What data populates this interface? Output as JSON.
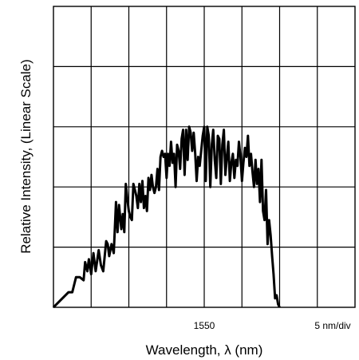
{
  "chart_data": {
    "type": "line",
    "title": "",
    "xlabel": "Wavelength, λ (nm)",
    "ylabel": "Relative Intensity, (Linear Scale)",
    "x_tick_label": "1550",
    "x_scale_label": "5 nm/div",
    "x_unit": "nm",
    "xlim": [
      1530,
      1570
    ],
    "ylim": [
      0,
      5
    ],
    "grid": true,
    "grid_divisions": {
      "x": 8,
      "y": 5
    },
    "line_color": "#000000",
    "series": [
      {
        "x": [
          1530.0,
          1532.0,
          1532.5,
          1533.0,
          1533.5,
          1534.0,
          1534.2,
          1534.5,
          1534.7,
          1535.0,
          1535.3,
          1535.6,
          1536.0,
          1536.3,
          1536.6,
          1537.0,
          1537.2,
          1537.4,
          1537.7,
          1538.0,
          1538.3,
          1538.5,
          1538.7,
          1539.0,
          1539.2,
          1539.4,
          1539.6,
          1539.8,
          1540.0,
          1540.2,
          1540.4,
          1540.6,
          1540.8,
          1541.0,
          1541.2,
          1541.4,
          1541.6,
          1541.8,
          1542.0,
          1542.2,
          1542.4,
          1542.6,
          1542.8,
          1543.0,
          1543.2,
          1543.4,
          1543.6,
          1543.8,
          1544.0,
          1544.2,
          1544.4,
          1544.6,
          1544.8,
          1545.0,
          1545.2,
          1545.4,
          1545.6,
          1545.8,
          1546.0,
          1546.2,
          1546.4,
          1546.6,
          1546.8,
          1547.0,
          1547.2,
          1547.4,
          1547.6,
          1547.8,
          1548.0,
          1548.2,
          1548.4,
          1548.6,
          1548.8,
          1549.0,
          1549.2,
          1549.4,
          1549.6,
          1549.8,
          1550.0,
          1550.2,
          1550.4,
          1550.6,
          1550.8,
          1551.0,
          1551.2,
          1551.4,
          1551.6,
          1551.8,
          1552.0,
          1552.2,
          1552.4,
          1552.6,
          1552.8,
          1553.0,
          1553.2,
          1553.4,
          1553.6,
          1553.8,
          1554.0,
          1554.2,
          1554.4,
          1554.6,
          1554.8,
          1555.0,
          1555.2,
          1555.4,
          1555.6,
          1555.8,
          1556.0,
          1556.2,
          1556.4,
          1556.6,
          1556.8,
          1557.0,
          1557.2,
          1557.4,
          1557.6,
          1557.8,
          1558.0,
          1558.2,
          1558.4,
          1558.6,
          1558.8,
          1559.0,
          1559.2,
          1559.4,
          1559.6,
          1559.8,
          1560.0
        ],
        "y": [
          0.0,
          0.25,
          0.25,
          0.5,
          0.5,
          0.45,
          0.75,
          0.6,
          0.8,
          0.55,
          0.9,
          0.6,
          0.95,
          0.7,
          0.6,
          1.1,
          1.05,
          0.85,
          1.05,
          0.9,
          1.75,
          1.25,
          1.7,
          1.3,
          1.55,
          1.25,
          2.05,
          1.8,
          1.6,
          1.5,
          1.45,
          2.05,
          1.95,
          1.85,
          1.65,
          2.05,
          1.75,
          2.1,
          1.65,
          1.85,
          1.6,
          2.15,
          1.95,
          2.2,
          2.0,
          1.9,
          2.0,
          2.3,
          1.95,
          2.5,
          2.6,
          2.5,
          2.55,
          2.15,
          2.55,
          2.35,
          2.75,
          2.4,
          2.55,
          2.0,
          2.7,
          2.6,
          2.3,
          2.8,
          2.95,
          2.2,
          2.95,
          2.45,
          3.0,
          2.9,
          2.6,
          2.9,
          2.55,
          2.1,
          2.5,
          2.35,
          2.6,
          2.85,
          3.0,
          2.1,
          3.0,
          2.85,
          2.0,
          2.7,
          2.95,
          2.45,
          2.15,
          2.85,
          2.8,
          2.05,
          2.7,
          2.95,
          2.2,
          2.5,
          2.75,
          2.1,
          2.4,
          2.55,
          2.15,
          2.45,
          2.35,
          2.75,
          2.5,
          2.1,
          2.4,
          2.65,
          2.5,
          2.85,
          2.35,
          2.55,
          2.25,
          2.0,
          2.45,
          2.05,
          2.3,
          1.75,
          2.45,
          1.6,
          1.45,
          1.95,
          1.05,
          1.45,
          1.2,
          0.85,
          0.55,
          0.15,
          0.2,
          0.05,
          0.0
        ]
      }
    ]
  }
}
